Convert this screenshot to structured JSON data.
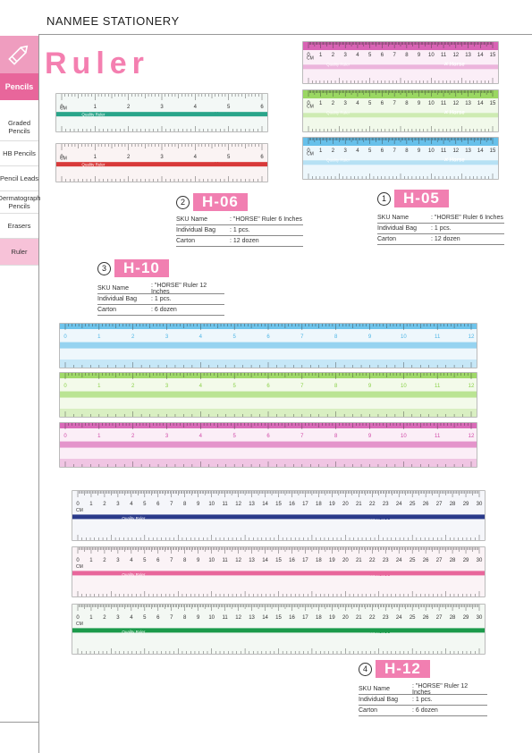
{
  "header": {
    "brand": "NANMEE STATIONERY"
  },
  "sidebar": {
    "section": "Pencils",
    "items": [
      {
        "label": "Graded Pencils"
      },
      {
        "label": "HB Pencils"
      },
      {
        "label": "Pencil Leads"
      },
      {
        "label": "Dermatograph Pencils"
      },
      {
        "label": "Erasers"
      },
      {
        "label": "Ruler"
      }
    ]
  },
  "page": {
    "title": "Ruler"
  },
  "labels": {
    "cm": "CM",
    "inch": "INCH",
    "quality": "Quality Ruler",
    "horse": "Horse"
  },
  "products": [
    {
      "num": "2",
      "code": "H-06",
      "specs": [
        {
          "k": "SKU Name",
          "v": ": \"HORSE\" Ruler 6 Inches"
        },
        {
          "k": "Individual Bag",
          "v": ": 1 pcs."
        },
        {
          "k": "Carton",
          "v": ": 12 dozen"
        }
      ]
    },
    {
      "num": "1",
      "code": "H-05",
      "specs": [
        {
          "k": "SKU Name",
          "v": ": \"HORSE\" Ruler 6 Inches"
        },
        {
          "k": "Individual Bag",
          "v": ": 1 pcs."
        },
        {
          "k": "Carton",
          "v": ": 12 dozen"
        }
      ]
    },
    {
      "num": "3",
      "code": "H-10",
      "specs": [
        {
          "k": "SKU Name",
          "v": ": \"HORSE\" Ruler 12 Inches"
        },
        {
          "k": "Individual Bag",
          "v": ": 1 pcs."
        },
        {
          "k": "Carton",
          "v": ": 6 dozen"
        }
      ]
    },
    {
      "num": "4",
      "code": "H-12",
      "specs": [
        {
          "k": "SKU Name",
          "v": ": \"HORSE\" Ruler 12 Inches"
        },
        {
          "k": "Individual Bag",
          "v": ": 1 pcs."
        },
        {
          "k": "Carton",
          "v": ": 6 dozen"
        }
      ]
    }
  ],
  "colors": {
    "pink": "#e8669b",
    "blue": "#4fb6e6",
    "green": "#8bd14a",
    "magenta": "#d14aa8",
    "red": "#d83a3a",
    "teal": "#2aa58a",
    "navy": "#2a3a8a",
    "darkgreen": "#1b9a4a"
  }
}
